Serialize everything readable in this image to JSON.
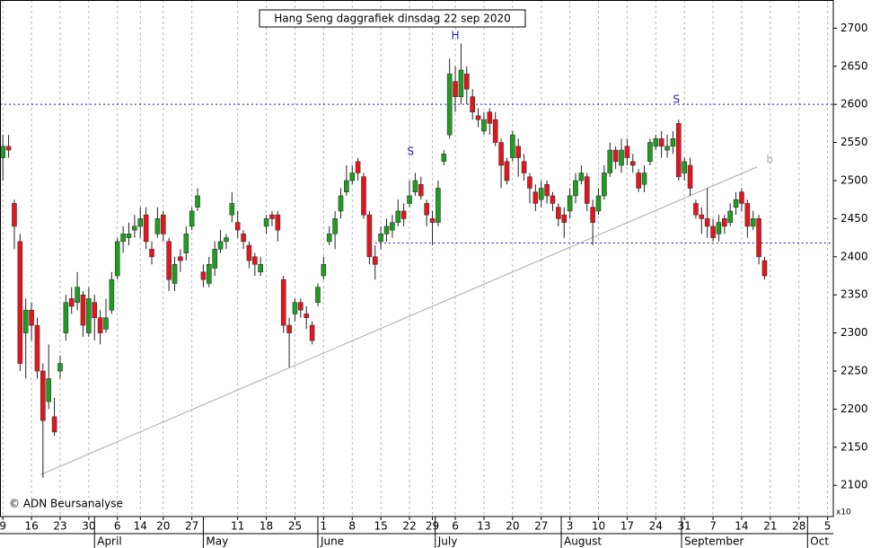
{
  "chart_data": {
    "type": "candlestick",
    "title": "Hang Seng daggrafiek dinsdag 22 sep 2020",
    "copyright": "© ADN Beursanalyse",
    "scale_note": "x10",
    "up_color": "#1e9e1e",
    "down_color": "#e8141c",
    "grid": true,
    "xlim": [
      -0.5,
      145
    ],
    "ylim": [
      2059,
      2737
    ],
    "yticks": [
      2100,
      2150,
      2200,
      2250,
      2300,
      2350,
      2400,
      2450,
      2500,
      2550,
      2600,
      2650,
      2700
    ],
    "xticks": [
      {
        "value": 0,
        "label": "9"
      },
      {
        "value": 5,
        "label": "16"
      },
      {
        "value": 10,
        "label": "23"
      },
      {
        "value": 15,
        "label": "30"
      },
      {
        "value": 20,
        "label": "6"
      },
      {
        "value": 24,
        "label": "14"
      },
      {
        "value": 28,
        "label": "20"
      },
      {
        "value": 33,
        "label": "27"
      },
      {
        "value": 41,
        "label": "11"
      },
      {
        "value": 46,
        "label": "18"
      },
      {
        "value": 51,
        "label": "25"
      },
      {
        "value": 56,
        "label": "1"
      },
      {
        "value": 61,
        "label": "8"
      },
      {
        "value": 66,
        "label": "15"
      },
      {
        "value": 71,
        "label": "22"
      },
      {
        "value": 75,
        "label": "29"
      },
      {
        "value": 79,
        "label": "6"
      },
      {
        "value": 84,
        "label": "13"
      },
      {
        "value": 89,
        "label": "20"
      },
      {
        "value": 94,
        "label": "27"
      },
      {
        "value": 99,
        "label": "3"
      },
      {
        "value": 104,
        "label": "10"
      },
      {
        "value": 109,
        "label": "17"
      },
      {
        "value": 114,
        "label": "24"
      },
      {
        "value": 119,
        "label": "31"
      },
      {
        "value": 124,
        "label": "7"
      },
      {
        "value": 129,
        "label": "14"
      },
      {
        "value": 134,
        "label": "21"
      },
      {
        "value": 139,
        "label": "28"
      },
      {
        "value": 144,
        "label": "5"
      }
    ],
    "months": [
      {
        "value": 16,
        "label": "April"
      },
      {
        "value": 35,
        "label": "May"
      },
      {
        "value": 55,
        "label": "June"
      },
      {
        "value": 75.5,
        "label": "July"
      },
      {
        "value": 97.5,
        "label": "August"
      },
      {
        "value": 118.5,
        "label": "September"
      },
      {
        "value": 140.5,
        "label": "Oct"
      }
    ],
    "open": [
      2530,
      2545,
      2470,
      2420,
      2300,
      2330,
      2310,
      2250,
      2210,
      2190,
      2250,
      2300,
      2345,
      2340,
      2350,
      2300,
      2340,
      2320,
      2305,
      2330,
      2375,
      2420,
      2425,
      2435,
      2440,
      2455,
      2410,
      2430,
      2455,
      2420,
      2365,
      2400,
      2405,
      2440,
      2465,
      2380,
      2365,
      2385,
      2410,
      2420,
      2455,
      2445,
      2430,
      2415,
      2400,
      2380,
      2440,
      2455,
      2455,
      2370,
      2310,
      2325,
      2340,
      2325,
      2310,
      2340,
      2375,
      2420,
      2430,
      2460,
      2485,
      2500,
      2525,
      2505,
      2455,
      2400,
      2420,
      2430,
      2435,
      2445,
      2460,
      2470,
      2485,
      2495,
      2470,
      2450,
      2445,
      2525,
      2560,
      2630,
      2610,
      2640,
      2610,
      2585,
      2565,
      2590,
      2580,
      2550,
      2525,
      2530,
      2545,
      2525,
      2505,
      2485,
      2475,
      2495,
      2480,
      2465,
      2455,
      2460,
      2480,
      2500,
      2505,
      2465,
      2460,
      2480,
      2510,
      2540,
      2520,
      2545,
      2525,
      2510,
      2495,
      2525,
      2545,
      2555,
      2540,
      2545,
      2575,
      2510,
      2520,
      2470,
      2455,
      2450,
      2440,
      2430,
      2450,
      2445,
      2465,
      2485,
      2470,
      2440,
      2450,
      2395
    ],
    "high": [
      2560,
      2560,
      2475,
      2430,
      2345,
      2340,
      2320,
      2260,
      2285,
      2215,
      2270,
      2350,
      2360,
      2380,
      2355,
      2360,
      2350,
      2330,
      2345,
      2380,
      2425,
      2440,
      2445,
      2455,
      2465,
      2465,
      2420,
      2465,
      2460,
      2425,
      2400,
      2410,
      2440,
      2465,
      2490,
      2390,
      2400,
      2420,
      2435,
      2430,
      2485,
      2460,
      2435,
      2420,
      2405,
      2400,
      2455,
      2460,
      2460,
      2375,
      2320,
      2345,
      2345,
      2335,
      2315,
      2365,
      2400,
      2440,
      2460,
      2490,
      2520,
      2520,
      2530,
      2510,
      2460,
      2415,
      2440,
      2450,
      2455,
      2475,
      2470,
      2500,
      2510,
      2505,
      2475,
      2460,
      2500,
      2540,
      2660,
      2650,
      2680,
      2650,
      2620,
      2595,
      2590,
      2595,
      2590,
      2555,
      2530,
      2565,
      2555,
      2535,
      2510,
      2495,
      2500,
      2500,
      2485,
      2470,
      2465,
      2490,
      2510,
      2520,
      2510,
      2475,
      2490,
      2520,
      2550,
      2545,
      2555,
      2555,
      2535,
      2515,
      2520,
      2555,
      2560,
      2565,
      2560,
      2565,
      2580,
      2530,
      2530,
      2475,
      2465,
      2490,
      2450,
      2455,
      2455,
      2470,
      2485,
      2490,
      2475,
      2460,
      2455,
      2400
    ],
    "low": [
      2500,
      2530,
      2410,
      2250,
      2240,
      2290,
      2240,
      2110,
      2200,
      2165,
      2240,
      2290,
      2325,
      2330,
      2295,
      2295,
      2290,
      2285,
      2300,
      2325,
      2370,
      2405,
      2415,
      2425,
      2425,
      2410,
      2390,
      2425,
      2420,
      2355,
      2355,
      2380,
      2395,
      2435,
      2460,
      2360,
      2360,
      2375,
      2405,
      2410,
      2445,
      2425,
      2410,
      2385,
      2375,
      2375,
      2430,
      2440,
      2420,
      2300,
      2255,
      2315,
      2320,
      2305,
      2285,
      2335,
      2370,
      2415,
      2410,
      2450,
      2480,
      2495,
      2500,
      2450,
      2390,
      2370,
      2410,
      2420,
      2425,
      2440,
      2440,
      2465,
      2480,
      2475,
      2440,
      2415,
      2440,
      2520,
      2555,
      2590,
      2600,
      2600,
      2580,
      2570,
      2560,
      2560,
      2545,
      2490,
      2495,
      2525,
      2505,
      2500,
      2470,
      2460,
      2465,
      2470,
      2460,
      2440,
      2425,
      2450,
      2470,
      2495,
      2460,
      2415,
      2455,
      2475,
      2505,
      2515,
      2510,
      2520,
      2510,
      2485,
      2485,
      2520,
      2540,
      2530,
      2530,
      2535,
      2500,
      2500,
      2480,
      2450,
      2430,
      2425,
      2420,
      2420,
      2430,
      2440,
      2455,
      2460,
      2425,
      2435,
      2390,
      2370
    ],
    "close": [
      2545,
      2540,
      2440,
      2260,
      2330,
      2310,
      2250,
      2185,
      2240,
      2170,
      2260,
      2340,
      2335,
      2360,
      2310,
      2345,
      2320,
      2300,
      2320,
      2370,
      2420,
      2430,
      2430,
      2440,
      2450,
      2420,
      2400,
      2450,
      2430,
      2370,
      2390,
      2395,
      2430,
      2460,
      2480,
      2370,
      2390,
      2410,
      2420,
      2425,
      2470,
      2435,
      2420,
      2395,
      2390,
      2390,
      2450,
      2450,
      2435,
      2310,
      2300,
      2340,
      2330,
      2320,
      2290,
      2360,
      2390,
      2430,
      2450,
      2480,
      2500,
      2510,
      2510,
      2455,
      2400,
      2390,
      2430,
      2440,
      2445,
      2460,
      2450,
      2480,
      2500,
      2480,
      2455,
      2445,
      2490,
      2535,
      2640,
      2610,
      2645,
      2620,
      2590,
      2580,
      2580,
      2575,
      2550,
      2520,
      2500,
      2560,
      2530,
      2510,
      2490,
      2470,
      2490,
      2480,
      2470,
      2450,
      2445,
      2480,
      2500,
      2510,
      2470,
      2445,
      2480,
      2510,
      2540,
      2525,
      2540,
      2530,
      2520,
      2490,
      2510,
      2550,
      2555,
      2545,
      2545,
      2555,
      2505,
      2525,
      2490,
      2455,
      2450,
      2440,
      2425,
      2445,
      2440,
      2460,
      2475,
      2470,
      2440,
      2450,
      2400,
      2375
    ],
    "levels": [
      {
        "value": 2600,
        "from": -0.5,
        "color": "#1a1aa8"
      },
      {
        "value": 2418,
        "from": 65,
        "color": "#1a1aa8"
      }
    ],
    "trendline": {
      "x": [
        6.6,
        131.7
      ],
      "y": [
        2114,
        2518
      ],
      "color": "#aaaaaa"
    },
    "annotations": [
      {
        "text": "H",
        "x": 79,
        "y": 2690,
        "color": "#2020c0"
      },
      {
        "text": "S",
        "x": 71.2,
        "y": 2538,
        "color": "#2020c0"
      },
      {
        "text": "S",
        "x": 117.6,
        "y": 2606,
        "color": "#2020c0"
      },
      {
        "text": "b",
        "x": 133.9,
        "y": 2527,
        "color": "#aaaaaa"
      }
    ]
  }
}
